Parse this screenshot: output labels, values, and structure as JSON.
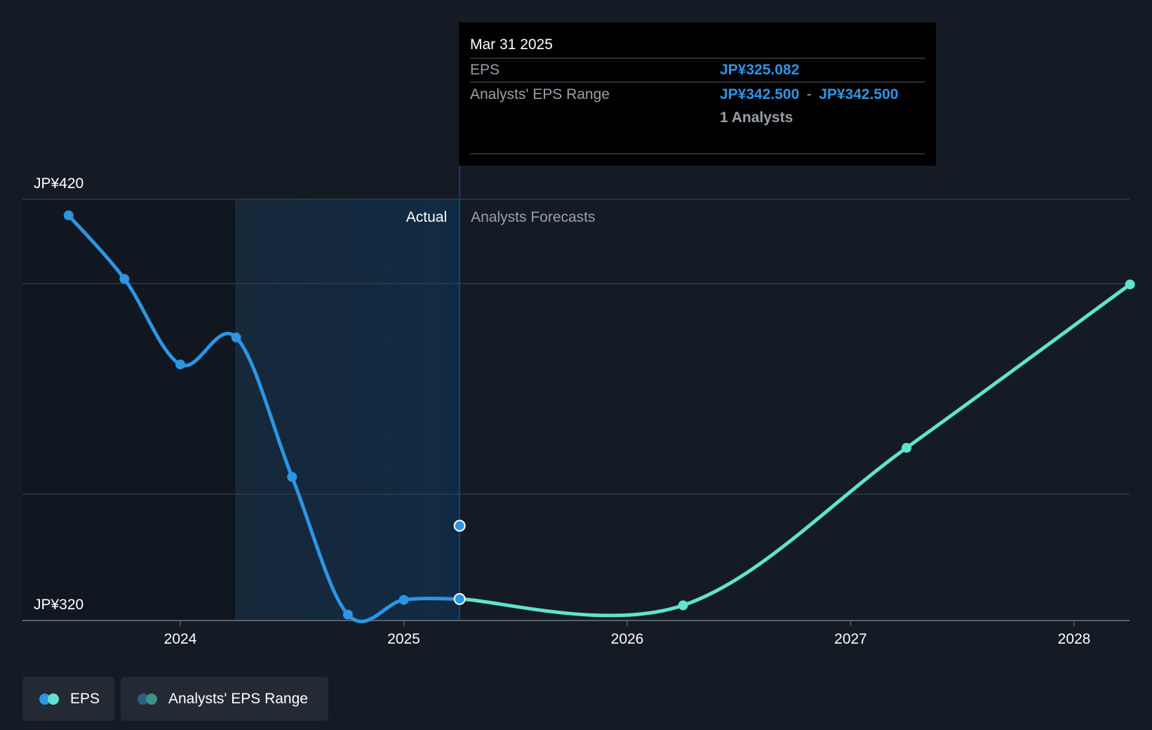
{
  "chart_data": {
    "type": "line",
    "currency": "JP¥",
    "y_axis": {
      "ylim": [
        320,
        420
      ],
      "tick_values": [
        320,
        420
      ],
      "tick_labels": [
        "JP¥320",
        "JP¥420"
      ],
      "gridlines": [
        420,
        400,
        350,
        320
      ]
    },
    "x_axis": {
      "ticks": [
        {
          "year": 2024,
          "label": "2024"
        },
        {
          "year": 2025,
          "label": "2025"
        },
        {
          "year": 2026,
          "label": "2026"
        },
        {
          "year": 2027,
          "label": "2027"
        },
        {
          "year": 2028,
          "label": "2028"
        }
      ],
      "xlim": [
        2023.45,
        2028.25
      ]
    },
    "sections": {
      "actual_label": "Actual",
      "forecast_label": "Analysts Forecasts",
      "highlight_start": 2024.25,
      "divider": 2025.25
    },
    "series": [
      {
        "name": "EPS",
        "kind": "actual",
        "color": "#2d95e3",
        "points": [
          {
            "x": 2023.5,
            "y": 416.2
          },
          {
            "x": 2023.75,
            "y": 401.1
          },
          {
            "x": 2024.0,
            "y": 380.8
          },
          {
            "x": 2024.25,
            "y": 387.2
          },
          {
            "x": 2024.5,
            "y": 354.1
          },
          {
            "x": 2024.75,
            "y": 321.4
          },
          {
            "x": 2025.0,
            "y": 324.9
          },
          {
            "x": 2025.25,
            "y": 325.1
          }
        ]
      },
      {
        "name": "EPS",
        "kind": "forecast",
        "color": "#5fe3cf",
        "points": [
          {
            "x": 2025.25,
            "y": 325.1
          },
          {
            "x": 2026.25,
            "y": 323.6
          },
          {
            "x": 2027.25,
            "y": 361.0
          },
          {
            "x": 2028.25,
            "y": 399.8
          }
        ]
      }
    ],
    "analyst_range_point": {
      "x": 2025.25,
      "y": 342.5,
      "color": "#2d95e3"
    }
  },
  "tooltip": {
    "date": "Mar 31 2025",
    "eps_label": "EPS",
    "eps_value": "JP¥325.082",
    "range_label": "Analysts' EPS Range",
    "range_low": "JP¥342.500",
    "range_sep": "-",
    "range_high": "JP¥342.500",
    "analysts": "1 Analysts"
  },
  "legend": {
    "eps_label": "EPS",
    "range_label": "Analysts' EPS Range",
    "eps_colors": [
      "#2d95e3",
      "#5fe3cf"
    ],
    "range_colors": [
      "#2a5f86",
      "#3f8f86"
    ]
  }
}
